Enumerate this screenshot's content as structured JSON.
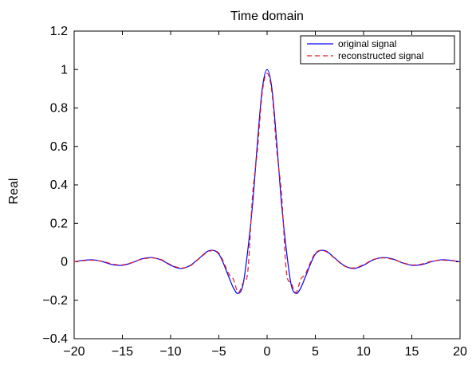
{
  "chart_data": {
    "type": "line",
    "title": "Time domain",
    "xlabel": "",
    "ylabel": "Real",
    "xlim": [
      -20,
      20
    ],
    "ylim": [
      -0.4,
      1.2
    ],
    "xticks": [
      -20,
      -15,
      -10,
      -5,
      0,
      5,
      10,
      15,
      20
    ],
    "xtick_labels": [
      "−20",
      "−15",
      "−10",
      "−5",
      "0",
      "5",
      "10",
      "15",
      "20"
    ],
    "yticks": [
      -0.4,
      -0.2,
      0,
      0.2,
      0.4,
      0.6,
      0.8,
      1,
      1.2
    ],
    "ytick_labels": [
      "−0.4",
      "−0.2",
      "0",
      "0.2",
      "0.4",
      "0.6",
      "0.8",
      "1",
      "1.2"
    ],
    "grid": false,
    "legend_position": "top-right",
    "series": [
      {
        "name": "original signal",
        "color": "#0000ff",
        "dash": "solid",
        "x": [
          -20,
          -19,
          -18,
          -17,
          -16,
          -15,
          -14,
          -13,
          -12,
          -11,
          -10,
          -9,
          -8,
          -7,
          -6,
          -5,
          -4,
          -3.5,
          -3,
          -2.5,
          -2,
          -1.5,
          -1,
          -0.5,
          0,
          0.5,
          1,
          1.5,
          2,
          2.5,
          3,
          3.5,
          4,
          5,
          6,
          7,
          8,
          9,
          10,
          11,
          12,
          13,
          14,
          15,
          16,
          17,
          18,
          19,
          20
        ],
        "y": [
          0.0,
          0.008,
          0.01,
          0.0,
          -0.015,
          -0.018,
          -0.005,
          0.015,
          0.022,
          0.01,
          -0.018,
          -0.035,
          -0.02,
          0.02,
          0.058,
          0.04,
          -0.075,
          -0.135,
          -0.165,
          -0.12,
          0.06,
          0.3,
          0.62,
          0.9,
          1.0,
          0.9,
          0.62,
          0.3,
          0.06,
          -0.12,
          -0.165,
          -0.135,
          -0.075,
          0.04,
          0.058,
          0.02,
          -0.02,
          -0.035,
          -0.018,
          0.01,
          0.022,
          0.015,
          -0.005,
          -0.018,
          -0.015,
          0.0,
          0.01,
          0.008,
          0.0
        ]
      },
      {
        "name": "reconstructed signal",
        "color": "#e41a1c",
        "dash": "dashed",
        "x": [
          -20,
          -19,
          -18,
          -17,
          -16,
          -15,
          -14,
          -13,
          -12,
          -11,
          -10,
          -9,
          -8,
          -7,
          -6,
          -5,
          -4,
          -3.5,
          -3,
          -2.5,
          -2,
          -1.5,
          -1,
          -0.5,
          0,
          0.5,
          1,
          1.5,
          2,
          2.5,
          3,
          3.5,
          4,
          5,
          6,
          7,
          8,
          9,
          10,
          11,
          12,
          13,
          14,
          15,
          16,
          17,
          18,
          19,
          20
        ],
        "y": [
          0.0,
          0.006,
          0.008,
          0.002,
          -0.012,
          -0.016,
          -0.004,
          0.013,
          0.02,
          0.012,
          -0.015,
          -0.032,
          -0.022,
          0.018,
          0.055,
          0.045,
          -0.06,
          -0.09,
          -0.16,
          -0.11,
          -0.05,
          0.35,
          0.58,
          0.88,
          0.98,
          0.88,
          0.58,
          0.35,
          -0.05,
          -0.11,
          -0.16,
          -0.09,
          -0.06,
          0.045,
          0.055,
          0.018,
          -0.022,
          -0.032,
          -0.015,
          0.012,
          0.02,
          0.013,
          -0.004,
          -0.016,
          -0.012,
          0.002,
          0.008,
          0.006,
          0.0
        ]
      }
    ]
  }
}
